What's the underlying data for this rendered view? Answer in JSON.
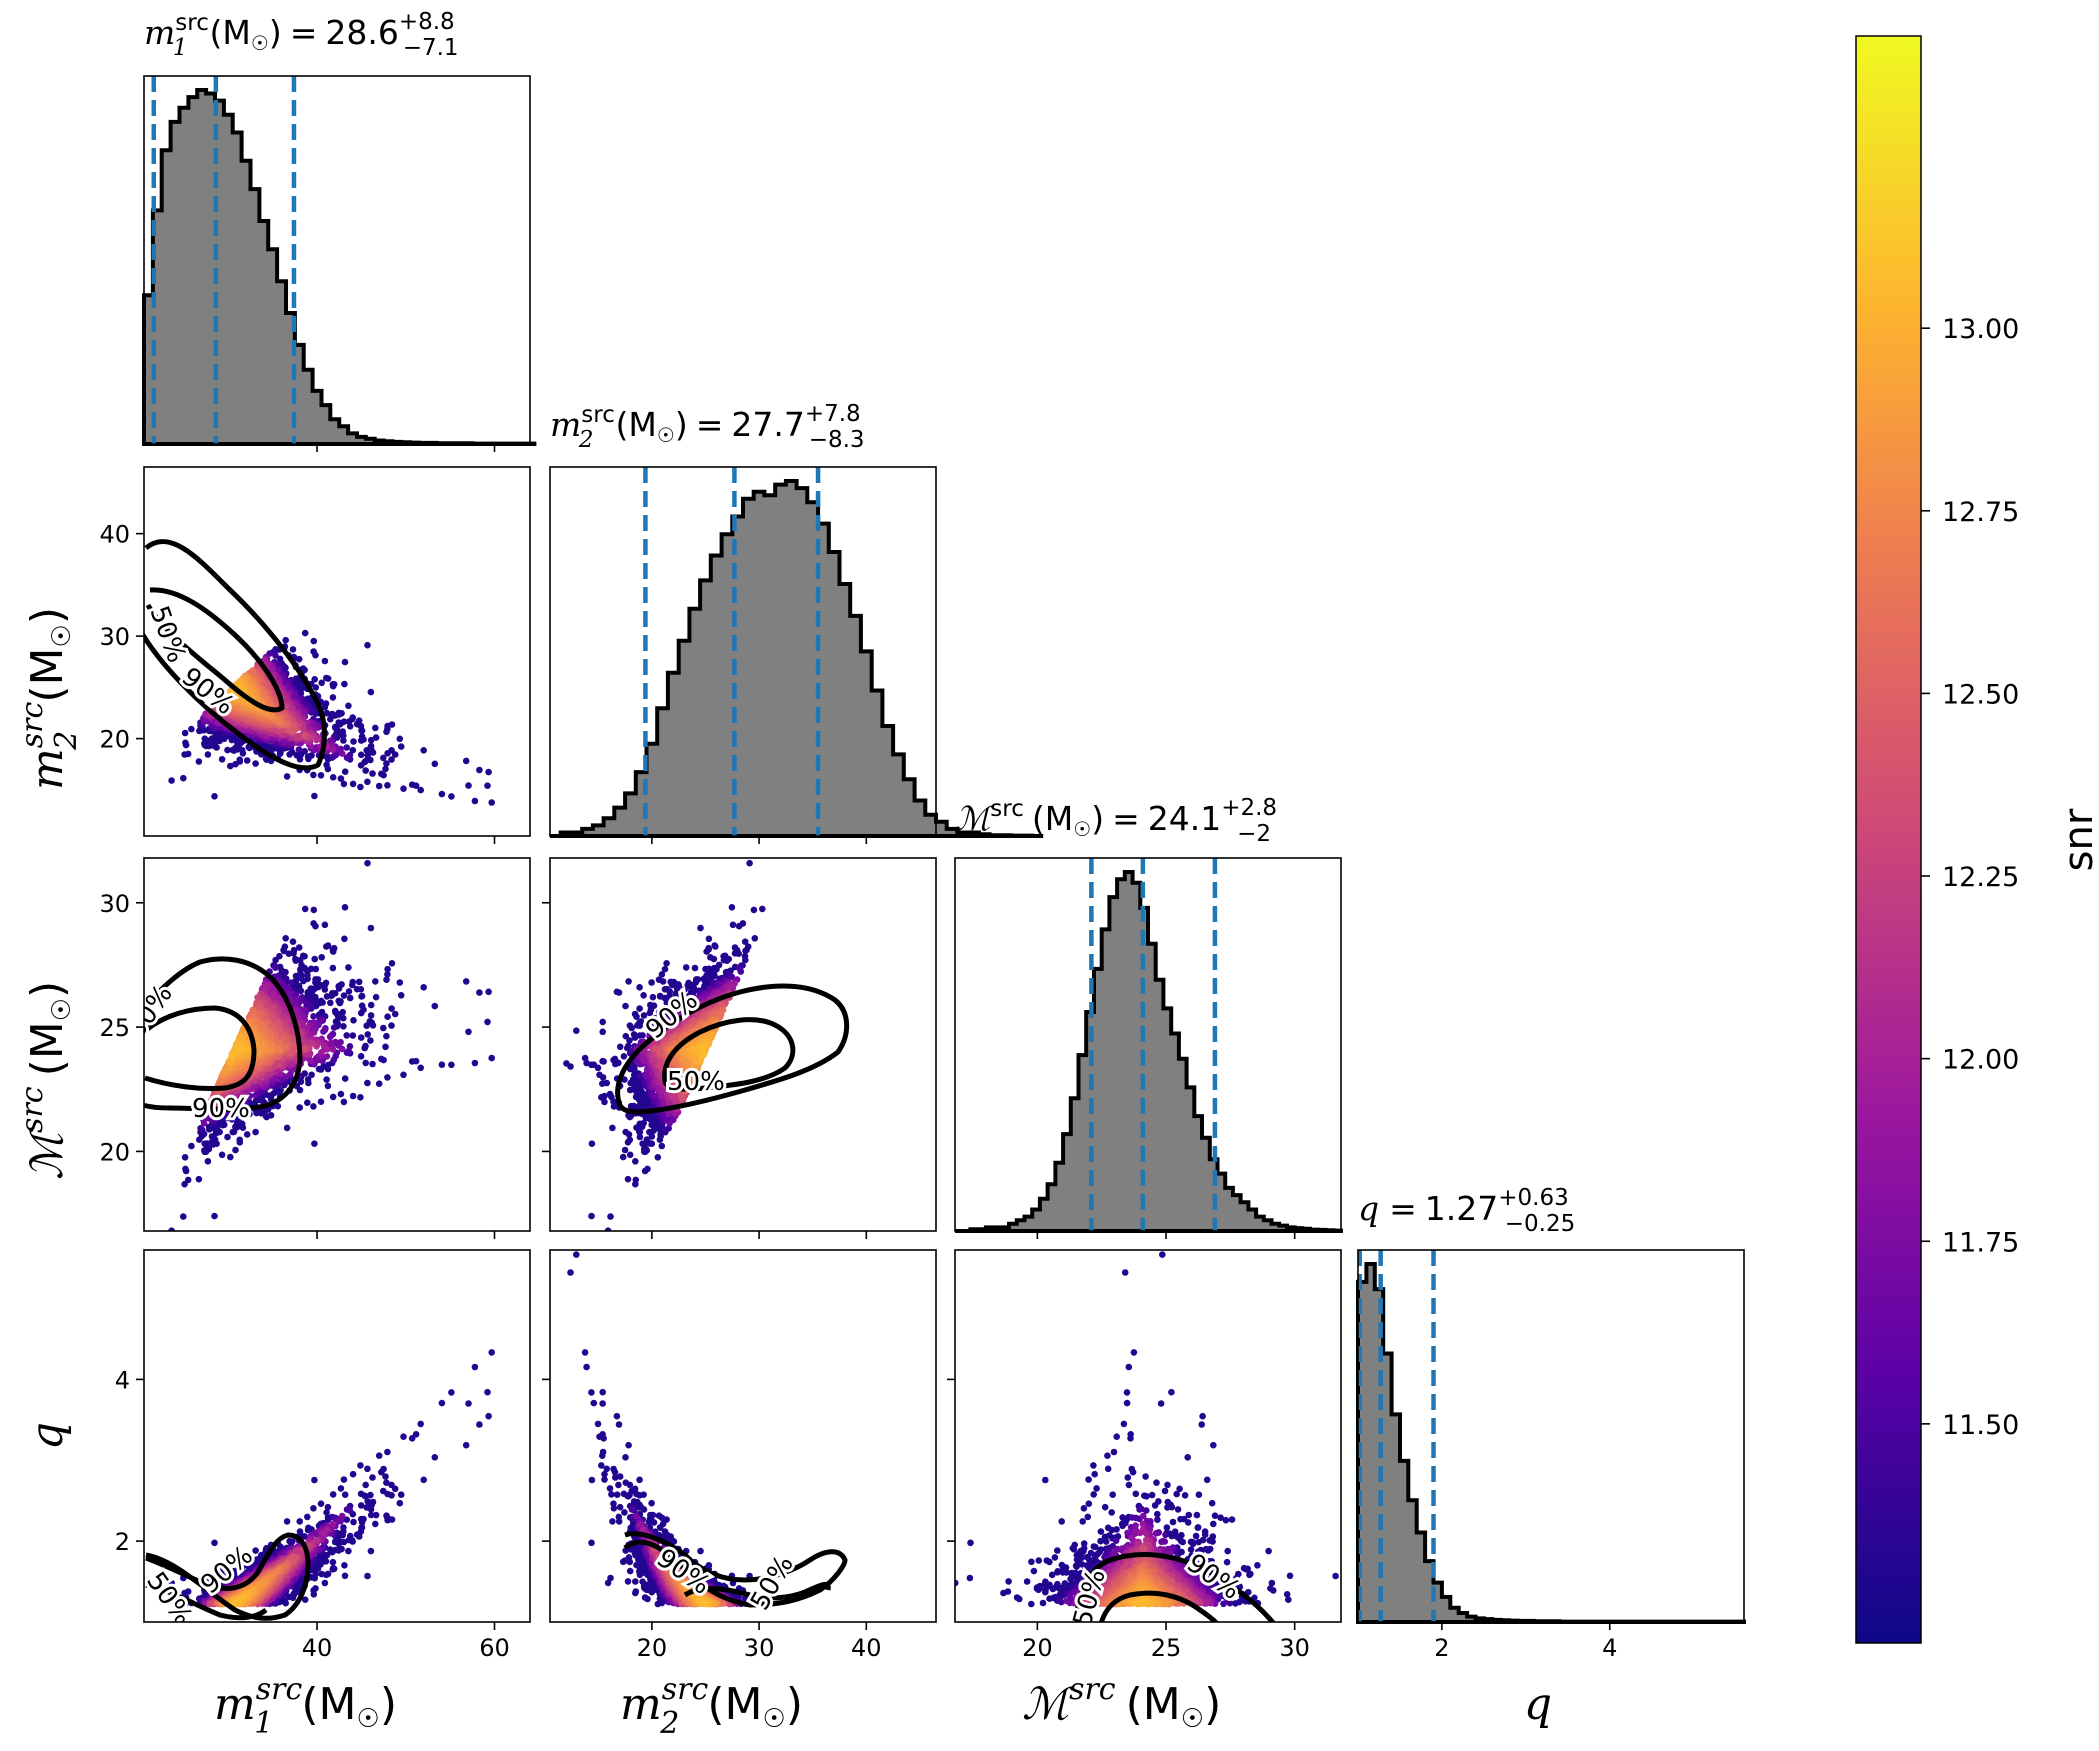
{
  "chart_data": {
    "type": "corner",
    "parameters": [
      {
        "key": "m1",
        "sym": "m",
        "sub": "1",
        "sup": "src",
        "unit": "(M",
        "sun": "☉",
        "unit_close": ")",
        "range": [
          20.5,
          64
        ],
        "ticks": [
          40,
          60
        ],
        "tick_labels": [
          "40",
          "60"
        ],
        "title_value": "28.6",
        "title_plus": "+8.8",
        "title_minus": "−7.1",
        "quantiles": [
          21.6,
          28.6,
          37.4
        ]
      },
      {
        "key": "m2",
        "sym": "m",
        "sub": "2",
        "sup": "src",
        "unit": "(M",
        "sun": "☉",
        "unit_close": ")",
        "range": [
          10.5,
          46.5
        ],
        "ticks": [
          20,
          30,
          40
        ],
        "tick_labels": [
          "20",
          "30",
          "40"
        ],
        "title_value": "27.7",
        "title_plus": "+7.8",
        "title_minus": "−8.3",
        "quantiles": [
          19.4,
          27.7,
          35.5
        ]
      },
      {
        "key": "mc",
        "sym": "ℳ",
        "sub": "",
        "sup": "src",
        "unit": "(M",
        "sun": "☉",
        "unit_close": ")",
        "range": [
          16.8,
          31.8
        ],
        "ticks": [
          20,
          25,
          30
        ],
        "tick_labels": [
          "20",
          "25",
          "30"
        ],
        "title_value": "24.1",
        "title_plus": "+2.8",
        "title_minus": "−2",
        "quantiles": [
          22.1,
          24.1,
          26.9
        ]
      },
      {
        "key": "q",
        "sym": "q",
        "sub": "",
        "sup": "",
        "unit": "",
        "sun": "",
        "unit_close": "",
        "range": [
          1.0,
          5.6
        ],
        "ticks": [
          2,
          4
        ],
        "tick_labels": [
          "2",
          "4"
        ],
        "title_value": "1.27",
        "title_plus": "+0.63",
        "title_minus": "−0.25",
        "quantiles": [
          1.02,
          1.27,
          1.9
        ]
      }
    ],
    "row_tick_labels": {
      "m2": {
        "ticks": [
          20,
          30,
          40
        ],
        "labels": [
          "20",
          "30",
          "40"
        ]
      },
      "mc": {
        "ticks": [
          20,
          25,
          30
        ],
        "labels": [
          "20",
          "25",
          "30"
        ]
      },
      "q": {
        "ticks": [
          2,
          4
        ],
        "labels": [
          "2",
          "4"
        ]
      }
    },
    "histograms": {
      "m1": {
        "x0": 20.5,
        "bin_width": 1.0,
        "counts": [
          0.42,
          0.66,
          0.83,
          0.91,
          0.95,
          0.98,
          1.0,
          0.99,
          0.97,
          0.93,
          0.88,
          0.8,
          0.72,
          0.63,
          0.55,
          0.46,
          0.37,
          0.28,
          0.21,
          0.15,
          0.11,
          0.07,
          0.05,
          0.03,
          0.02,
          0.015,
          0.01,
          0.008,
          0.006,
          0.005,
          0.004,
          0.003,
          0.003,
          0.002,
          0.002,
          0.002,
          0.002,
          0.001,
          0.001,
          0.001,
          0.001,
          0.001,
          0.001,
          0.001
        ]
      },
      "m2": {
        "x0": 10.5,
        "bin_width": 1.0,
        "counts": [
          0.0,
          0.01,
          0.01,
          0.02,
          0.03,
          0.05,
          0.08,
          0.12,
          0.18,
          0.26,
          0.36,
          0.46,
          0.55,
          0.64,
          0.72,
          0.79,
          0.85,
          0.9,
          0.95,
          0.97,
          0.96,
          0.99,
          1.0,
          0.98,
          0.94,
          0.88,
          0.8,
          0.71,
          0.62,
          0.52,
          0.41,
          0.31,
          0.23,
          0.16,
          0.1,
          0.06,
          0.04,
          0.02,
          0.01,
          0.01,
          0.005,
          0.002,
          0.002,
          0.001,
          0.001,
          0.0
        ]
      },
      "mc": {
        "x0": 16.8,
        "bin_width": 0.3,
        "counts": [
          0.0,
          0.0,
          0.005,
          0.005,
          0.01,
          0.01,
          0.01,
          0.02,
          0.03,
          0.04,
          0.06,
          0.09,
          0.13,
          0.19,
          0.27,
          0.37,
          0.49,
          0.61,
          0.73,
          0.84,
          0.93,
          0.98,
          1.0,
          0.97,
          0.9,
          0.8,
          0.7,
          0.62,
          0.55,
          0.48,
          0.4,
          0.32,
          0.26,
          0.2,
          0.16,
          0.12,
          0.1,
          0.08,
          0.06,
          0.04,
          0.03,
          0.02,
          0.015,
          0.01,
          0.008,
          0.006,
          0.004,
          0.003,
          0.002,
          0.001
        ]
      },
      "q": {
        "x0": 1.0,
        "bin_width": 0.1,
        "counts": [
          0.95,
          1.0,
          0.93,
          0.75,
          0.58,
          0.45,
          0.34,
          0.25,
          0.17,
          0.11,
          0.07,
          0.04,
          0.025,
          0.015,
          0.01,
          0.008,
          0.006,
          0.005,
          0.004,
          0.003,
          0.003,
          0.002,
          0.002,
          0.002,
          0.001,
          0.001,
          0.001,
          0.001,
          0.001,
          0.001,
          0.001,
          0.001,
          0.001,
          0.001,
          0.001,
          0.001,
          0.001,
          0.001,
          0.001,
          0.001,
          0.001,
          0.001,
          0.001,
          0.001,
          0.001,
          0.001
        ]
      }
    },
    "contour_levels": [
      "50%",
      "90%"
    ],
    "colorbar": {
      "label": "snr",
      "min": 11.2,
      "max": 13.4,
      "ticks": [
        11.5,
        11.75,
        12.0,
        12.25,
        12.5,
        12.75,
        13.0
      ],
      "tick_labels": [
        "11.50",
        "11.75",
        "12.00",
        "12.25",
        "12.50",
        "12.75",
        "13.00"
      ],
      "colormap": [
        "#0d0887",
        "#5c01a6",
        "#9c179e",
        "#cc4778",
        "#ed7953",
        "#fdb42f",
        "#f0f921"
      ]
    },
    "scatter_style": {
      "dense_color": "#f9c72a"
    },
    "hist_fill": "#808080",
    "quantile_color": "#1f77b4"
  }
}
